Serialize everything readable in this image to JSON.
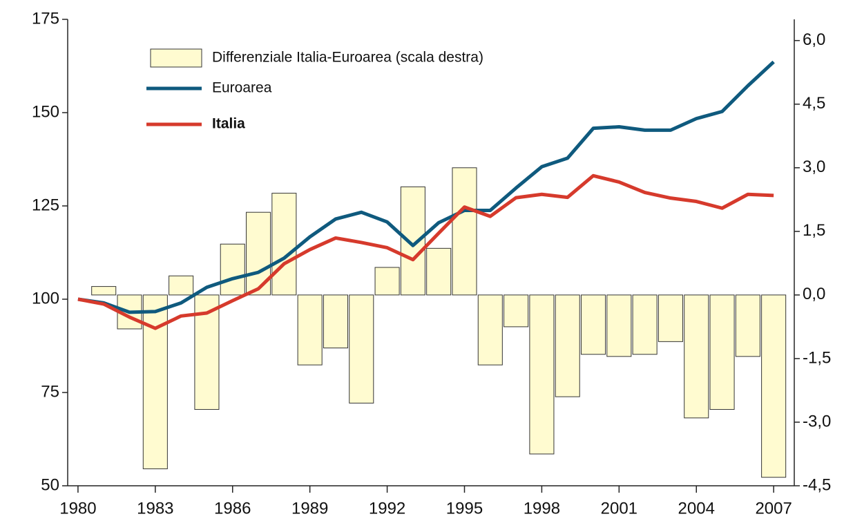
{
  "chart_data": {
    "type": "bar_line",
    "x": [
      1980,
      1981,
      1982,
      1983,
      1984,
      1985,
      1986,
      1987,
      1988,
      1989,
      1990,
      1991,
      1992,
      1993,
      1994,
      1995,
      1996,
      1997,
      1998,
      1999,
      2000,
      2001,
      2002,
      2003,
      2004,
      2005,
      2006,
      2007
    ],
    "series": [
      {
        "name": "Differenziale Italia-Euroarea (scala destra)",
        "color": "#fffbd0",
        "axis": "y2",
        "kind": "bar",
        "values": [
          null,
          0.2,
          -0.8,
          -4.1,
          0.45,
          -2.7,
          1.2,
          1.95,
          2.4,
          -1.65,
          -1.25,
          -2.55,
          0.65,
          2.55,
          1.1,
          3.0,
          -1.65,
          -0.75,
          -3.75,
          -2.4,
          -1.4,
          -1.45,
          -1.4,
          -1.1,
          -2.9,
          -2.7,
          -1.45,
          -4.3
        ]
      },
      {
        "name": "Euroarea",
        "color": "#0f5a7e",
        "kind": "line",
        "values": [
          100,
          99,
          96.5,
          96.7,
          99,
          103.2,
          105.5,
          107.2,
          111,
          116.7,
          121.5,
          123.3,
          120.7,
          114.4,
          120.5,
          123.8,
          123.8,
          129.8,
          135.5,
          137.8,
          145.8,
          146.2,
          145.3,
          145.3,
          148.4,
          150.3,
          157.2,
          163.6
        ]
      },
      {
        "name": "Italia",
        "color": "#d63a2c",
        "kind": "line",
        "values": [
          100,
          98.7,
          95.2,
          92.2,
          95.5,
          96.3,
          99.6,
          102.8,
          109.5,
          113.3,
          116.4,
          115.2,
          113.8,
          110.6,
          117.7,
          124.7,
          122.2,
          127.2,
          128.1,
          127.3,
          133.1,
          131.4,
          128.6,
          127.1,
          126.2,
          124.4,
          128.1,
          127.8
        ]
      }
    ],
    "xlim": [
      1979.6,
      2007.8
    ],
    "xticks": [
      1980,
      1983,
      1986,
      1989,
      1992,
      1995,
      1998,
      2001,
      2004,
      2007
    ],
    "ylim": [
      50,
      175
    ],
    "yticks": [
      50,
      75,
      100,
      125,
      150,
      175
    ],
    "y2lim": [
      -4.5,
      6.5
    ],
    "y2ticks": [
      {
        "value": -4.5,
        "label": "-4,5"
      },
      {
        "value": -3,
        "label": "-3,0"
      },
      {
        "value": -1.5,
        "label": "-1,5"
      },
      {
        "value": 0,
        "label": "0,0"
      },
      {
        "value": 1.5,
        "label": "1,5"
      },
      {
        "value": 3,
        "label": "3,0"
      },
      {
        "value": 4.5,
        "label": "4,5"
      },
      {
        "value": 6,
        "label": "6,0"
      }
    ]
  }
}
